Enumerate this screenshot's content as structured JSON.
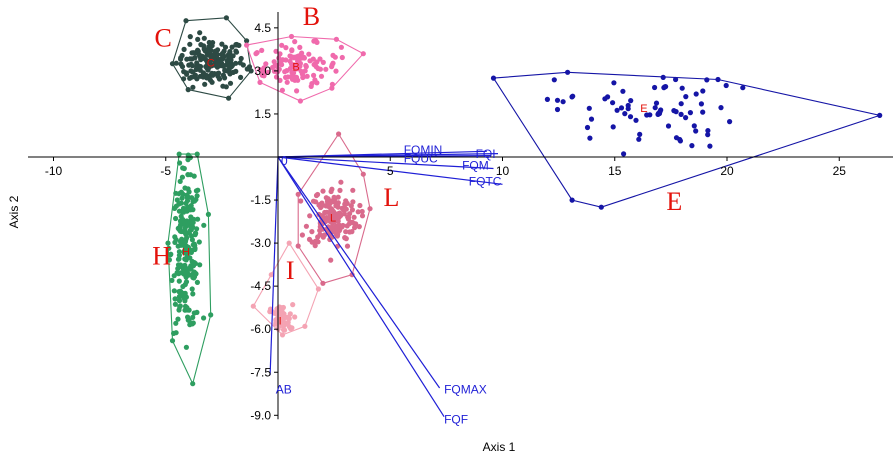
{
  "chart_data": {
    "type": "scatter",
    "xlabel": "Axis 1",
    "ylabel": "Axis 2",
    "xlim": [
      -10,
      27
    ],
    "ylim": [
      -9.0,
      5.0
    ],
    "x_ticks": [
      -10,
      -5,
      5,
      10,
      15,
      20,
      25
    ],
    "y_ticks": [
      4.5,
      3.0,
      1.5,
      -1.5,
      -3.0,
      -4.5,
      -6.0,
      -7.5,
      -9.0
    ],
    "x_tick_labels": [
      "-10",
      "-5",
      "5",
      "10",
      "15",
      "20",
      "25"
    ],
    "y_tick_labels": [
      "4.5",
      "3.0",
      "1.5",
      "-1.5",
      "-3.0",
      "-4.5",
      "-6.0",
      "-7.5",
      "-9.0"
    ],
    "origin_label": "0",
    "grid": false,
    "groups": [
      {
        "name": "C",
        "color": "#2d4a44",
        "centroid": [
          -3.0,
          3.3
        ],
        "spread": [
          1.4,
          0.75
        ],
        "count": 180,
        "big_label_pos": [
          -5.5,
          3.85
        ],
        "hull": [
          [
            -4.1,
            4.75
          ],
          [
            -2.3,
            4.85
          ],
          [
            -1.4,
            4.05
          ],
          [
            -1.2,
            3.0
          ],
          [
            -2.2,
            2.05
          ],
          [
            -4.0,
            2.35
          ],
          [
            -4.7,
            3.25
          ]
        ]
      },
      {
        "name": "B",
        "color": "#f06aac",
        "centroid": [
          0.8,
          3.15
        ],
        "spread": [
          1.8,
          0.7
        ],
        "count": 110,
        "big_label_pos": [
          1.1,
          4.6
        ],
        "hull": [
          [
            -1.4,
            3.9
          ],
          [
            0.6,
            4.2
          ],
          [
            2.6,
            4.1
          ],
          [
            3.8,
            3.6
          ],
          [
            2.4,
            2.4
          ],
          [
            1.0,
            1.95
          ],
          [
            -0.8,
            2.6
          ]
        ]
      },
      {
        "name": "H",
        "color": "#2e9e60",
        "centroid": [
          -4.1,
          -3.3
        ],
        "spread": [
          0.6,
          2.5
        ],
        "count": 230,
        "big_label_pos": [
          -5.6,
          -3.75
        ],
        "hull": [
          [
            -4.4,
            0.1
          ],
          [
            -3.6,
            0.1
          ],
          [
            -3.1,
            -2.0
          ],
          [
            -3.0,
            -5.5
          ],
          [
            -3.8,
            -7.9
          ],
          [
            -4.7,
            -6.4
          ],
          [
            -4.9,
            -3.0
          ]
        ]
      },
      {
        "name": "I",
        "color": "#f4a3b3",
        "centroid": [
          0.1,
          -5.7
        ],
        "spread": [
          0.5,
          0.5
        ],
        "count": 55,
        "big_label_pos": [
          0.35,
          -4.25
        ],
        "hull": [
          [
            0.5,
            -3.0
          ],
          [
            1.8,
            -4.6
          ],
          [
            1.2,
            -5.9
          ],
          [
            0.2,
            -6.2
          ],
          [
            -1.1,
            -5.2
          ],
          [
            -0.3,
            -4.1
          ]
        ]
      },
      {
        "name": "L",
        "color": "#d96a8c",
        "centroid": [
          2.45,
          -2.1
        ],
        "spread": [
          1.0,
          0.95
        ],
        "count": 170,
        "big_label_pos": [
          4.7,
          -1.7
        ],
        "hull": [
          [
            2.7,
            0.8
          ],
          [
            3.8,
            -0.6
          ],
          [
            4.1,
            -1.8
          ],
          [
            3.3,
            -4.1
          ],
          [
            2.0,
            -4.4
          ],
          [
            0.9,
            -3.1
          ],
          [
            0.9,
            -1.3
          ]
        ]
      },
      {
        "name": "E",
        "color": "#1515a6",
        "centroid": [
          16.3,
          1.7
        ],
        "spread": [
          3.6,
          1.3
        ],
        "count": 70,
        "big_label_pos": [
          17.3,
          -1.85
        ],
        "hull": [
          [
            9.6,
            2.75
          ],
          [
            12.9,
            2.95
          ],
          [
            19.6,
            2.7
          ],
          [
            26.8,
            1.45
          ],
          [
            14.4,
            -1.75
          ],
          [
            13.1,
            -1.5
          ]
        ]
      }
    ],
    "vectors": [
      {
        "name": "FQMIN",
        "end": [
          9.3,
          0.2
        ],
        "label_pos": [
          5.6,
          0.25
        ]
      },
      {
        "name": "FQUC",
        "end": [
          9.5,
          0.05
        ],
        "label_pos": [
          5.6,
          -0.05
        ]
      },
      {
        "name": "FQI",
        "end": [
          9.8,
          0.12
        ],
        "label_pos": [
          8.8,
          0.1
        ]
      },
      {
        "name": "FQM",
        "end": [
          9.6,
          -0.4
        ],
        "label_pos": [
          8.2,
          -0.3
        ]
      },
      {
        "name": "FQTC",
        "end": [
          10.0,
          -0.95
        ],
        "label_pos": [
          8.5,
          -0.85
        ]
      },
      {
        "name": "FQMAX",
        "end": [
          7.2,
          -8.05
        ],
        "label_pos": [
          7.4,
          -8.1
        ]
      },
      {
        "name": "FQF",
        "end": [
          7.4,
          -9.05
        ],
        "label_pos": [
          7.4,
          -9.15
        ]
      },
      {
        "name": "AB",
        "end": [
          -0.35,
          -7.6
        ],
        "label_pos": [
          -0.1,
          -8.1
        ]
      }
    ],
    "colors": {
      "vector": "#1f1fd6",
      "axis": "#000000",
      "big_label": "#e3120b",
      "centroid_label": "#e3120b"
    }
  }
}
